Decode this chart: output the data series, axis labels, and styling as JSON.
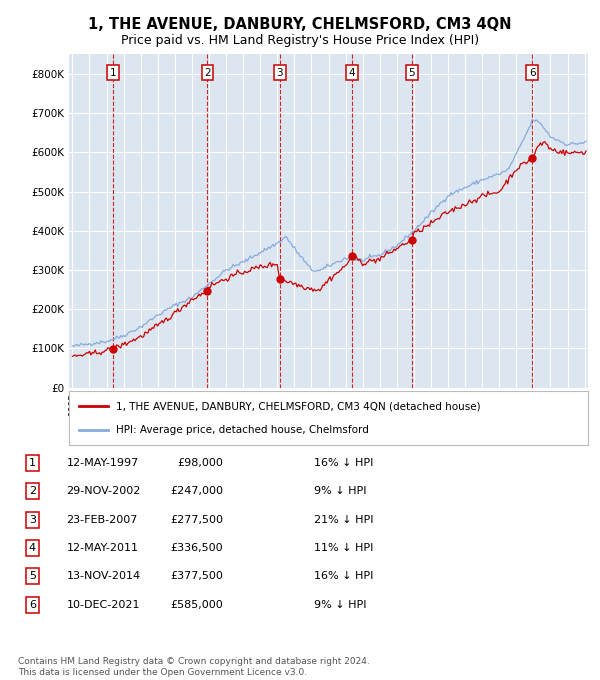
{
  "title": "1, THE AVENUE, DANBURY, CHELMSFORD, CM3 4QN",
  "subtitle": "Price paid vs. HM Land Registry's House Price Index (HPI)",
  "title_fontsize": 10.5,
  "subtitle_fontsize": 9,
  "plot_bg_color": "#dce6f1",
  "grid_color": "#ffffff",
  "ylim": [
    0,
    850000
  ],
  "yticks": [
    0,
    100000,
    200000,
    300000,
    400000,
    500000,
    600000,
    700000,
    800000
  ],
  "ytick_labels": [
    "£0",
    "£100K",
    "£200K",
    "£300K",
    "£400K",
    "£500K",
    "£600K",
    "£700K",
    "£800K"
  ],
  "year_start": 1995,
  "year_end": 2025,
  "sale_dates_x": [
    1997.36,
    2002.91,
    2007.14,
    2011.36,
    2014.87,
    2021.94
  ],
  "sale_prices_y": [
    98000,
    247000,
    277500,
    336500,
    377500,
    585000
  ],
  "sale_labels": [
    "1",
    "2",
    "3",
    "4",
    "5",
    "6"
  ],
  "sale_color": "#cc0000",
  "hpi_color": "#88aadd",
  "legend_entries": [
    "1, THE AVENUE, DANBURY, CHELMSFORD, CM3 4QN (detached house)",
    "HPI: Average price, detached house, Chelmsford"
  ],
  "table_rows": [
    [
      "1",
      "12-MAY-1997",
      "£98,000",
      "16% ↓ HPI"
    ],
    [
      "2",
      "29-NOV-2002",
      "£247,000",
      "9% ↓ HPI"
    ],
    [
      "3",
      "23-FEB-2007",
      "£277,500",
      "21% ↓ HPI"
    ],
    [
      "4",
      "12-MAY-2011",
      "£336,500",
      "11% ↓ HPI"
    ],
    [
      "5",
      "13-NOV-2014",
      "£377,500",
      "16% ↓ HPI"
    ],
    [
      "6",
      "10-DEC-2021",
      "£585,000",
      "9% ↓ HPI"
    ]
  ],
  "footer_text": "Contains HM Land Registry data © Crown copyright and database right 2024.\nThis data is licensed under the Open Government Licence v3.0.",
  "footnote_fontsize": 6.5
}
